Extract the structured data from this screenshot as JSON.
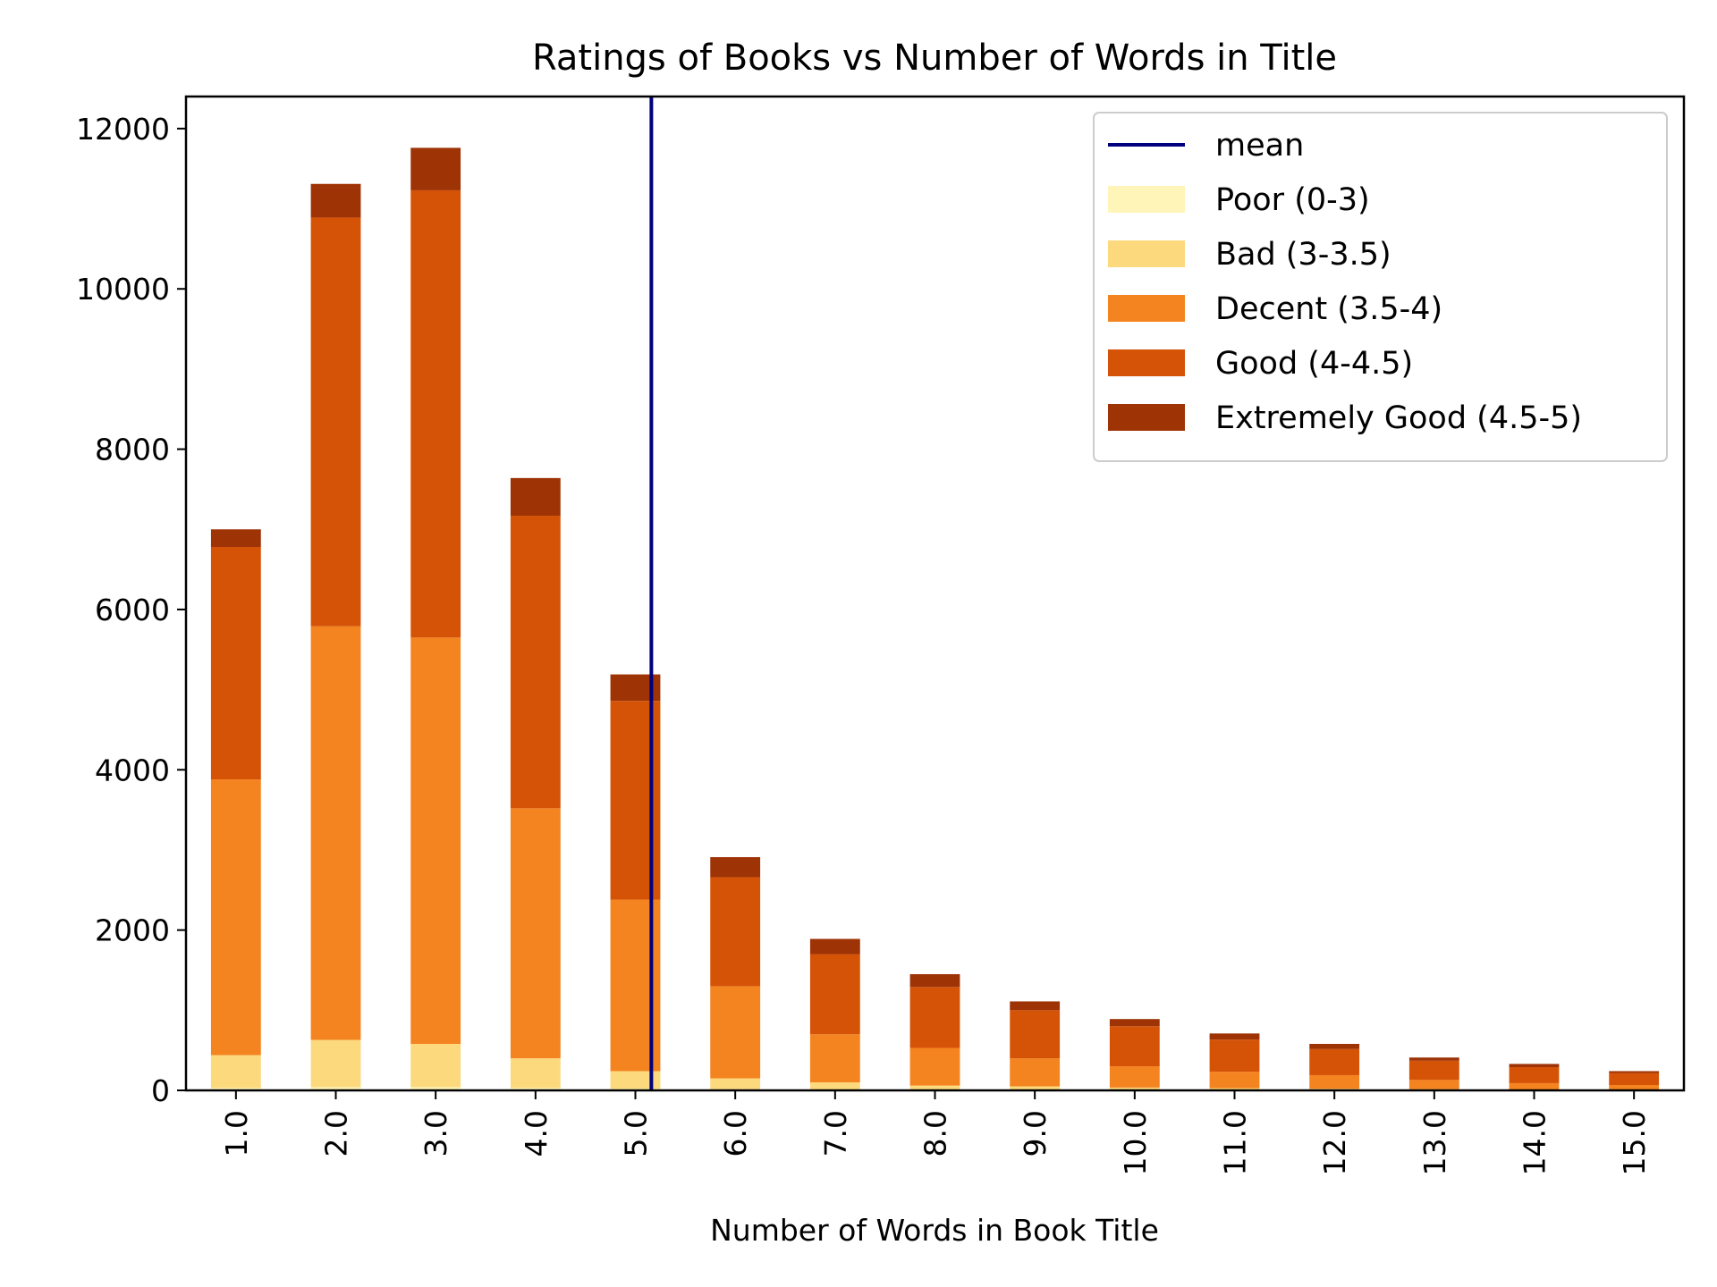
{
  "chart_data": {
    "type": "bar",
    "stacked": true,
    "title": "Ratings of Books vs Number of Words in Title",
    "xlabel": "Number of Words in Book Title",
    "ylabel": "",
    "categories": [
      "1.0",
      "2.0",
      "3.0",
      "4.0",
      "5.0",
      "6.0",
      "7.0",
      "8.0",
      "9.0",
      "10.0",
      "11.0",
      "12.0",
      "13.0",
      "14.0",
      "15.0"
    ],
    "ylim": [
      0,
      12400
    ],
    "yticks": [
      0,
      2000,
      4000,
      6000,
      8000,
      10000,
      12000
    ],
    "grid": false,
    "legend_position": "top-right",
    "series": [
      {
        "name": "Poor (0-3)",
        "color": "#fff5b8",
        "values": [
          30,
          40,
          40,
          30,
          20,
          15,
          10,
          8,
          6,
          5,
          4,
          3,
          2,
          2,
          1
        ]
      },
      {
        "name": "Bad (3-3.5)",
        "color": "#fdd97e",
        "values": [
          410,
          590,
          540,
          370,
          220,
          135,
          90,
          52,
          44,
          30,
          24,
          17,
          13,
          8,
          6
        ]
      },
      {
        "name": "Decent (3.5-4)",
        "color": "#f48420",
        "values": [
          3440,
          5160,
          5070,
          3120,
          2140,
          1150,
          600,
          470,
          350,
          265,
          205,
          170,
          115,
          80,
          60
        ]
      },
      {
        "name": "Good (4-4.5)",
        "color": "#d55307",
        "values": [
          2900,
          5100,
          5580,
          3650,
          2480,
          1360,
          1000,
          760,
          600,
          500,
          400,
          325,
          240,
          200,
          150
        ]
      },
      {
        "name": "Extremely Good (4.5-5)",
        "color": "#9e3306",
        "values": [
          220,
          420,
          530,
          470,
          330,
          250,
          190,
          160,
          110,
          90,
          77,
          65,
          40,
          40,
          23
        ]
      }
    ],
    "mean_line": {
      "name": "mean",
      "x": 5.16,
      "color": "#00007f"
    }
  }
}
